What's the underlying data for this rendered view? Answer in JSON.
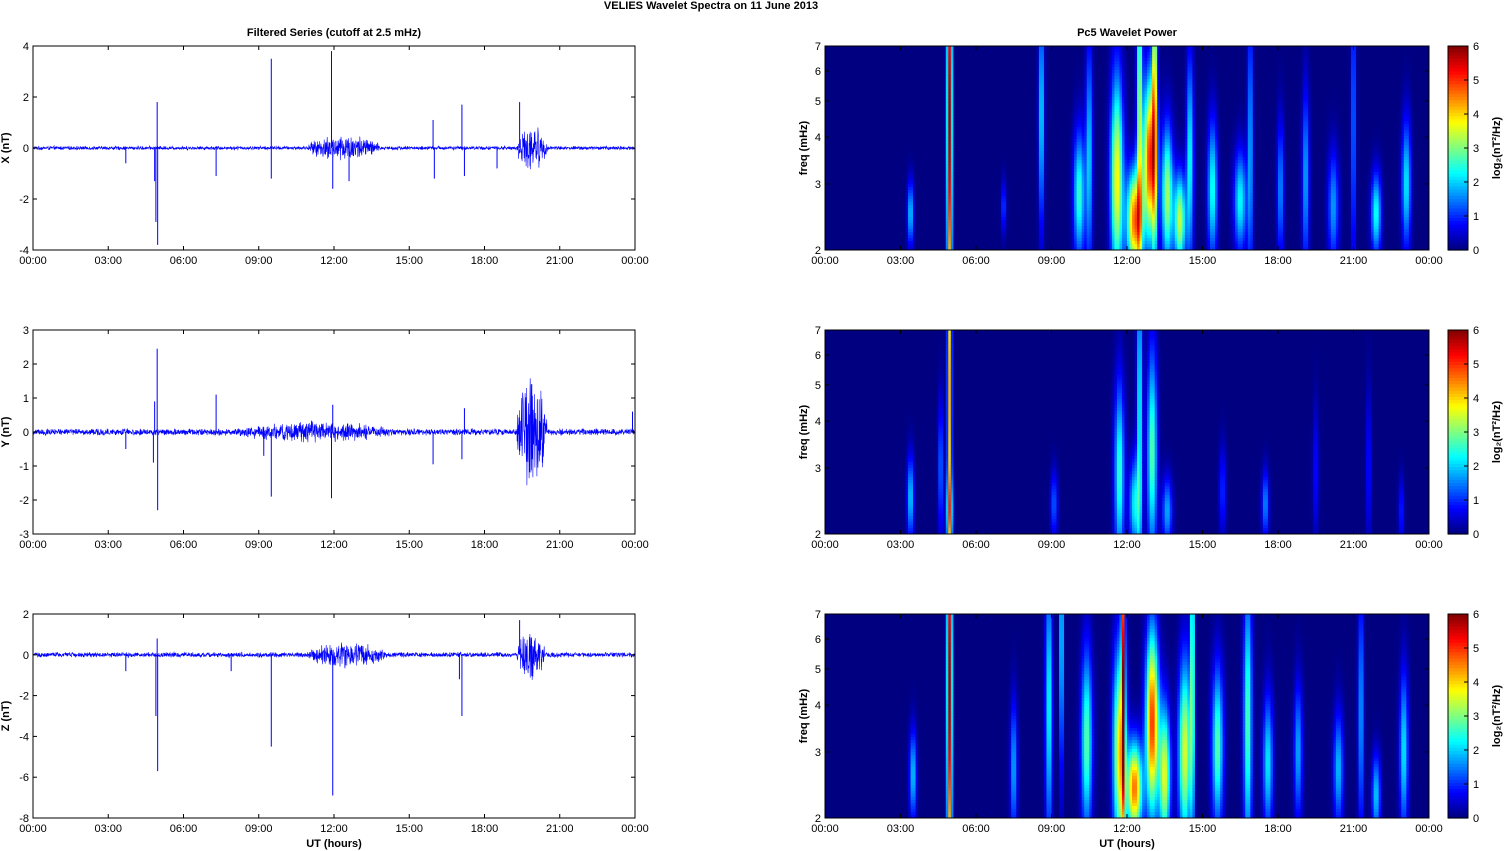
{
  "figure": {
    "title": "VELIES Wavelet Spectra on 11 June      2013",
    "left_title": "Filtered Series (cutoff at 2.5 mHz)",
    "right_title": "Pc5 Wavelet Power",
    "bottom_xlabel": "UT (hours)"
  },
  "chart_data": [
    {
      "type": "line",
      "title": "Filtered Series (cutoff at 2.5 mHz)",
      "xlabel": "",
      "ylabel": "X (nT)",
      "x_ticks": [
        "00:00",
        "03:00",
        "06:00",
        "09:00",
        "12:00",
        "15:00",
        "18:00",
        "21:00",
        "00:00"
      ],
      "xlim_hours": [
        0,
        24
      ],
      "ylim": [
        -4,
        4
      ],
      "y_ticks": [
        "4",
        "2",
        "0",
        "-2",
        "-4"
      ],
      "color": "#0000ff",
      "baseline_noise": 0.06,
      "spikes": [
        {
          "t": 4.95,
          "v": 1.8
        },
        {
          "t": 4.97,
          "v": -3.8
        },
        {
          "t": 4.9,
          "v": -2.9
        },
        {
          "t": 4.85,
          "v": -1.3
        },
        {
          "t": 9.5,
          "v": 3.5
        },
        {
          "t": 9.5,
          "v": -1.2
        },
        {
          "t": 11.9,
          "v": 3.8
        },
        {
          "t": 11.95,
          "v": -1.6
        },
        {
          "t": 12.6,
          "v": -1.3
        },
        {
          "t": 7.3,
          "v": -1.1
        },
        {
          "t": 17.1,
          "v": 1.7
        },
        {
          "t": 17.2,
          "v": -1.1
        },
        {
          "t": 16.0,
          "v": -1.2
        },
        {
          "t": 15.95,
          "v": 1.1
        },
        {
          "t": 18.5,
          "v": -0.8
        },
        {
          "t": 19.4,
          "v": 1.8
        },
        {
          "t": 3.7,
          "v": -0.6
        }
      ],
      "bursts": [
        {
          "start": 11.0,
          "end": 13.8,
          "amp": 0.45
        },
        {
          "start": 19.3,
          "end": 20.5,
          "amp": 0.7
        }
      ]
    },
    {
      "type": "line",
      "title": "",
      "xlabel": "",
      "ylabel": "Y (nT)",
      "x_ticks": [
        "00:00",
        "03:00",
        "06:00",
        "09:00",
        "12:00",
        "15:00",
        "18:00",
        "21:00",
        "00:00"
      ],
      "xlim_hours": [
        0,
        24
      ],
      "ylim": [
        -3,
        3
      ],
      "y_ticks": [
        "3",
        "2",
        "1",
        "0",
        "-1",
        "-2",
        "-3"
      ],
      "color": "#0000ff",
      "baseline_noise": 0.08,
      "spikes": [
        {
          "t": 4.95,
          "v": 2.45
        },
        {
          "t": 4.97,
          "v": -2.3
        },
        {
          "t": 4.85,
          "v": 0.9
        },
        {
          "t": 4.8,
          "v": -0.9
        },
        {
          "t": 7.3,
          "v": 1.1
        },
        {
          "t": 9.5,
          "v": -1.9
        },
        {
          "t": 9.2,
          "v": -0.7
        },
        {
          "t": 11.9,
          "v": -1.95
        },
        {
          "t": 11.95,
          "v": 0.8
        },
        {
          "t": 15.95,
          "v": -0.95
        },
        {
          "t": 17.1,
          "v": -0.8
        },
        {
          "t": 17.2,
          "v": 0.7
        },
        {
          "t": 3.7,
          "v": -0.5
        },
        {
          "t": 23.9,
          "v": 0.6
        }
      ],
      "bursts": [
        {
          "start": 8.0,
          "end": 14.5,
          "amp": 0.25
        },
        {
          "start": 19.3,
          "end": 20.5,
          "amp": 1.4
        }
      ]
    },
    {
      "type": "line",
      "title": "",
      "xlabel": "UT (hours)",
      "ylabel": "Z (nT)",
      "x_ticks": [
        "00:00",
        "03:00",
        "06:00",
        "09:00",
        "12:00",
        "15:00",
        "18:00",
        "21:00",
        "00:00"
      ],
      "xlim_hours": [
        0,
        24
      ],
      "ylim": [
        -8,
        2
      ],
      "y_ticks": [
        "2",
        "0",
        "-2",
        "-4",
        "-6",
        "-8"
      ],
      "color": "#0000ff",
      "baseline_noise": 0.1,
      "spikes": [
        {
          "t": 4.97,
          "v": -5.7
        },
        {
          "t": 4.95,
          "v": 0.8
        },
        {
          "t": 4.9,
          "v": -3.0
        },
        {
          "t": 3.7,
          "v": -0.8
        },
        {
          "t": 7.9,
          "v": -0.8
        },
        {
          "t": 9.5,
          "v": -4.5
        },
        {
          "t": 11.95,
          "v": -6.9
        },
        {
          "t": 17.1,
          "v": -3.0
        },
        {
          "t": 17.0,
          "v": -1.2
        },
        {
          "t": 19.4,
          "v": 1.7
        }
      ],
      "bursts": [
        {
          "start": 11.0,
          "end": 14.0,
          "amp": 0.55
        },
        {
          "start": 19.3,
          "end": 20.4,
          "amp": 1.0
        }
      ]
    },
    {
      "type": "heatmap",
      "title": "Pc5 Wavelet Power",
      "xlabel": "",
      "ylabel": "freq (mHz)",
      "x_ticks": [
        "00:00",
        "03:00",
        "06:00",
        "09:00",
        "12:00",
        "15:00",
        "18:00",
        "21:00",
        "00:00"
      ],
      "xlim_hours": [
        0,
        24
      ],
      "ylim": [
        2,
        7
      ],
      "y_scale": "log",
      "y_ticks": [
        "7",
        "6",
        "5",
        "4",
        "3",
        "2"
      ],
      "colorbar_label": "log₂(nT²/Hz)",
      "colorbar_ticks": [
        "6",
        "5",
        "4",
        "3",
        "2",
        "1",
        "0"
      ],
      "colormap": "jet",
      "clim": [
        0,
        6
      ],
      "blobs": [
        {
          "t": 4.95,
          "f": 4.5,
          "w": 0.07,
          "h": 1.0,
          "p": 5.8
        },
        {
          "t": 3.4,
          "f": 2.5,
          "w": 0.09,
          "h": 0.14,
          "p": 2.0
        },
        {
          "t": 7.1,
          "f": 2.6,
          "w": 0.07,
          "h": 0.12,
          "p": 1.2
        },
        {
          "t": 8.6,
          "f": 4.6,
          "w": 0.08,
          "h": 0.5,
          "p": 2.2
        },
        {
          "t": 10.1,
          "f": 2.8,
          "w": 0.16,
          "h": 0.28,
          "p": 2.6
        },
        {
          "t": 10.5,
          "f": 3.6,
          "w": 0.1,
          "h": 0.5,
          "p": 2.0
        },
        {
          "t": 11.6,
          "f": 3.1,
          "w": 0.18,
          "h": 0.45,
          "p": 3.8
        },
        {
          "t": 12.3,
          "f": 2.4,
          "w": 0.22,
          "h": 0.22,
          "p": 4.6
        },
        {
          "t": 12.5,
          "f": 4.8,
          "w": 0.08,
          "h": 0.8,
          "p": 3.2
        },
        {
          "t": 12.9,
          "f": 3.5,
          "w": 0.18,
          "h": 0.35,
          "p": 5.0
        },
        {
          "t": 13.1,
          "f": 5.5,
          "w": 0.07,
          "h": 0.8,
          "p": 3.5
        },
        {
          "t": 13.6,
          "f": 2.8,
          "w": 0.16,
          "h": 0.3,
          "p": 3.3
        },
        {
          "t": 14.1,
          "f": 2.4,
          "w": 0.16,
          "h": 0.2,
          "p": 3.5
        },
        {
          "t": 14.5,
          "f": 3.5,
          "w": 0.1,
          "h": 0.45,
          "p": 2.4
        },
        {
          "t": 15.4,
          "f": 2.9,
          "w": 0.14,
          "h": 0.3,
          "p": 2.4
        },
        {
          "t": 16.5,
          "f": 2.7,
          "w": 0.18,
          "h": 0.22,
          "p": 2.3
        },
        {
          "t": 16.9,
          "f": 3.8,
          "w": 0.08,
          "h": 0.6,
          "p": 1.8
        },
        {
          "t": 18.1,
          "f": 2.9,
          "w": 0.1,
          "h": 0.3,
          "p": 1.6
        },
        {
          "t": 19.1,
          "f": 3.1,
          "w": 0.1,
          "h": 0.4,
          "p": 1.8
        },
        {
          "t": 20.2,
          "f": 2.6,
          "w": 0.15,
          "h": 0.25,
          "p": 1.7
        },
        {
          "t": 21.0,
          "f": 4.3,
          "w": 0.07,
          "h": 0.7,
          "p": 1.5
        },
        {
          "t": 21.9,
          "f": 2.5,
          "w": 0.14,
          "h": 0.18,
          "p": 2.4
        },
        {
          "t": 23.1,
          "f": 3.0,
          "w": 0.13,
          "h": 0.28,
          "p": 2.2
        }
      ]
    },
    {
      "type": "heatmap",
      "title": "",
      "xlabel": "",
      "ylabel": "freq (mHz)",
      "x_ticks": [
        "00:00",
        "03:00",
        "06:00",
        "09:00",
        "12:00",
        "15:00",
        "18:00",
        "21:00",
        "00:00"
      ],
      "xlim_hours": [
        0,
        24
      ],
      "ylim": [
        2,
        7
      ],
      "y_scale": "log",
      "y_ticks": [
        "7",
        "6",
        "5",
        "4",
        "3",
        "2"
      ],
      "colorbar_label": "log₂(nT²/Hz)",
      "colorbar_ticks": [
        "6",
        "5",
        "4",
        "3",
        "2",
        "1",
        "0"
      ],
      "colormap": "jet",
      "clim": [
        0,
        6
      ],
      "blobs": [
        {
          "t": 4.95,
          "f": 4.8,
          "w": 0.06,
          "h": 1.0,
          "p": 4.2
        },
        {
          "t": 4.95,
          "f": 2.3,
          "w": 0.1,
          "h": 0.15,
          "p": 1.8
        },
        {
          "t": 3.4,
          "f": 2.5,
          "w": 0.1,
          "h": 0.18,
          "p": 2.0
        },
        {
          "t": 4.6,
          "f": 3.0,
          "w": 0.07,
          "h": 0.3,
          "p": 1.5
        },
        {
          "t": 9.1,
          "f": 2.4,
          "w": 0.1,
          "h": 0.15,
          "p": 1.3
        },
        {
          "t": 11.7,
          "f": 2.9,
          "w": 0.14,
          "h": 0.4,
          "p": 2.6
        },
        {
          "t": 12.3,
          "f": 2.4,
          "w": 0.15,
          "h": 0.2,
          "p": 2.2
        },
        {
          "t": 12.5,
          "f": 4.2,
          "w": 0.08,
          "h": 0.7,
          "p": 2.4
        },
        {
          "t": 13.0,
          "f": 3.3,
          "w": 0.14,
          "h": 0.45,
          "p": 2.8
        },
        {
          "t": 13.6,
          "f": 2.3,
          "w": 0.14,
          "h": 0.15,
          "p": 1.8
        },
        {
          "t": 15.8,
          "f": 2.6,
          "w": 0.1,
          "h": 0.2,
          "p": 1.0
        },
        {
          "t": 17.5,
          "f": 2.4,
          "w": 0.1,
          "h": 0.15,
          "p": 1.6
        },
        {
          "t": 19.5,
          "f": 2.9,
          "w": 0.08,
          "h": 0.3,
          "p": 0.9
        },
        {
          "t": 21.6,
          "f": 3.0,
          "w": 0.07,
          "h": 0.35,
          "p": 0.9
        },
        {
          "t": 22.9,
          "f": 2.3,
          "w": 0.08,
          "h": 0.15,
          "p": 1.0
        }
      ]
    },
    {
      "type": "heatmap",
      "title": "",
      "xlabel": "UT (hours)",
      "ylabel": "freq (mHz)",
      "x_ticks": [
        "00:00",
        "03:00",
        "06:00",
        "09:00",
        "12:00",
        "15:00",
        "18:00",
        "21:00",
        "00:00"
      ],
      "xlim_hours": [
        0,
        24
      ],
      "ylim": [
        2,
        7
      ],
      "y_scale": "log",
      "y_ticks": [
        "7",
        "6",
        "5",
        "4",
        "3",
        "2"
      ],
      "colorbar_label": "log₂(nT²/Hz)",
      "colorbar_ticks": [
        "6",
        "5",
        "4",
        "3",
        "2",
        "1",
        "0"
      ],
      "colormap": "jet",
      "clim": [
        0,
        6
      ],
      "blobs": [
        {
          "t": 4.95,
          "f": 4.5,
          "w": 0.07,
          "h": 1.0,
          "p": 5.8
        },
        {
          "t": 3.5,
          "f": 2.6,
          "w": 0.1,
          "h": 0.2,
          "p": 2.0
        },
        {
          "t": 7.5,
          "f": 2.7,
          "w": 0.1,
          "h": 0.3,
          "p": 1.8
        },
        {
          "t": 8.9,
          "f": 4.0,
          "w": 0.1,
          "h": 0.6,
          "p": 2.4
        },
        {
          "t": 9.4,
          "f": 6.0,
          "w": 0.05,
          "h": 0.6,
          "p": 2.8
        },
        {
          "t": 10.4,
          "f": 3.2,
          "w": 0.16,
          "h": 0.4,
          "p": 2.8
        },
        {
          "t": 11.7,
          "f": 3.0,
          "w": 0.18,
          "h": 0.45,
          "p": 4.0
        },
        {
          "t": 11.85,
          "f": 5.8,
          "w": 0.05,
          "h": 0.8,
          "p": 4.5
        },
        {
          "t": 12.3,
          "f": 2.4,
          "w": 0.22,
          "h": 0.2,
          "p": 4.6
        },
        {
          "t": 13.0,
          "f": 3.6,
          "w": 0.18,
          "h": 0.4,
          "p": 5.0
        },
        {
          "t": 13.5,
          "f": 2.6,
          "w": 0.16,
          "h": 0.3,
          "p": 3.6
        },
        {
          "t": 14.3,
          "f": 3.0,
          "w": 0.18,
          "h": 0.4,
          "p": 3.6
        },
        {
          "t": 14.6,
          "f": 5.5,
          "w": 0.06,
          "h": 0.8,
          "p": 3.0
        },
        {
          "t": 15.6,
          "f": 3.1,
          "w": 0.16,
          "h": 0.35,
          "p": 2.8
        },
        {
          "t": 16.8,
          "f": 3.6,
          "w": 0.12,
          "h": 0.6,
          "p": 2.8
        },
        {
          "t": 17.6,
          "f": 2.8,
          "w": 0.14,
          "h": 0.3,
          "p": 2.2
        },
        {
          "t": 18.8,
          "f": 3.0,
          "w": 0.12,
          "h": 0.3,
          "p": 1.8
        },
        {
          "t": 20.4,
          "f": 2.7,
          "w": 0.14,
          "h": 0.25,
          "p": 1.9
        },
        {
          "t": 21.3,
          "f": 3.8,
          "w": 0.08,
          "h": 0.55,
          "p": 1.8
        },
        {
          "t": 21.9,
          "f": 2.3,
          "w": 0.12,
          "h": 0.18,
          "p": 2.0
        },
        {
          "t": 23.0,
          "f": 3.0,
          "w": 0.12,
          "h": 0.35,
          "p": 2.2
        }
      ]
    }
  ]
}
